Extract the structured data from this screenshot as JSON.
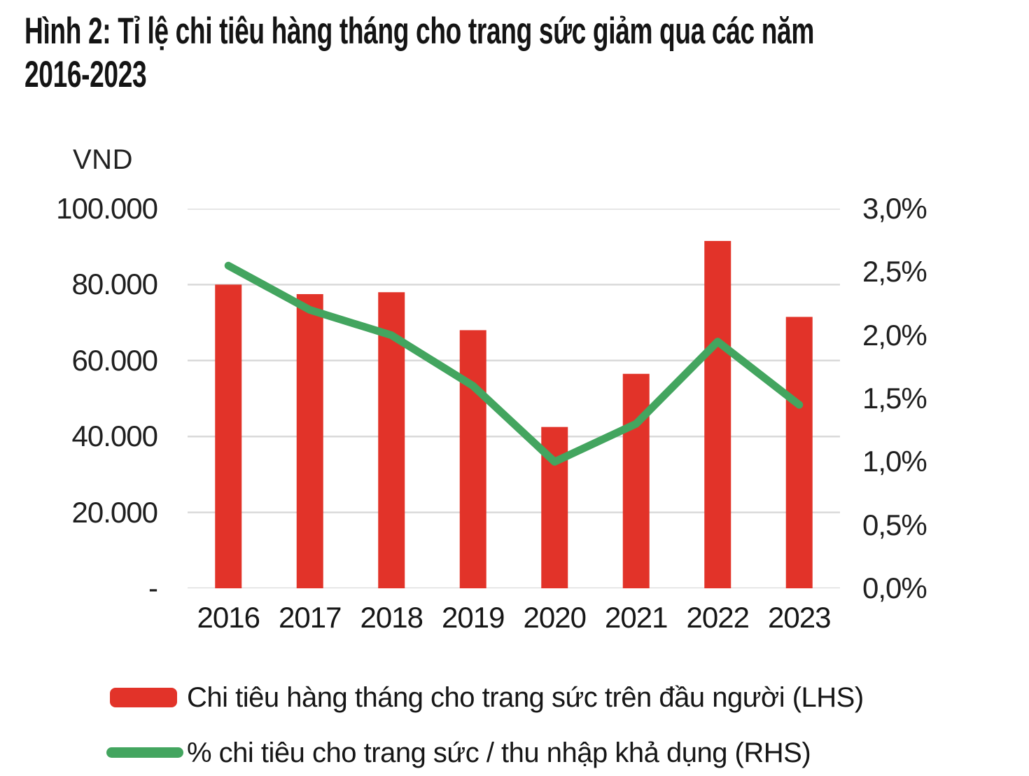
{
  "title": {
    "line1": "Hình 2: Tỉ lệ chi tiêu hàng tháng cho trang sức giảm qua các năm",
    "line2": "2016-2023",
    "full": "Hình 2: Tỉ lệ chi tiêu hàng tháng cho trang sức giảm qua các năm 2016-2023"
  },
  "left_axis": {
    "unit": "VND",
    "tick_labels": [
      "100.000",
      "80.000",
      "60.000",
      "40.000",
      "20.000",
      "-"
    ],
    "tick_values": [
      100000,
      80000,
      60000,
      40000,
      20000,
      0
    ]
  },
  "right_axis": {
    "tick_labels": [
      "3,0%",
      "2,5%",
      "2,0%",
      "1,5%",
      "1,0%",
      "0,5%",
      "0,0%"
    ],
    "tick_values": [
      3.0,
      2.5,
      2.0,
      1.5,
      1.0,
      0.5,
      0.0
    ]
  },
  "chart_data": {
    "type": "bar+line",
    "categories": [
      "2016",
      "2017",
      "2018",
      "2019",
      "2020",
      "2021",
      "2022",
      "2023"
    ],
    "series": [
      {
        "name": "Chi tiêu hàng tháng cho trang sức trên đầu người (LHS)",
        "type": "bar",
        "axis": "left",
        "unit": "VND",
        "color": "#e23329",
        "values": [
          80000,
          77500,
          78000,
          68000,
          42500,
          56500,
          91500,
          71500
        ]
      },
      {
        "name": "% chi tiêu cho trang sức / thu nhập khả dụng (RHS)",
        "type": "line",
        "axis": "right",
        "unit": "%",
        "color": "#43a55f",
        "values": [
          2.55,
          2.2,
          2.0,
          1.6,
          1.0,
          1.3,
          1.95,
          1.45
        ]
      }
    ],
    "left_ylim": [
      0,
      100000
    ],
    "right_ylim": [
      0,
      3.0
    ],
    "grid": true,
    "gridline_color": "#d9d9d9",
    "legend_position": "bottom"
  },
  "legend": {
    "items": [
      {
        "label": "Chi tiêu hàng tháng cho trang sức trên đầu người (LHS)",
        "swatch": "bar",
        "color": "#e23329"
      },
      {
        "label": "% chi tiêu cho trang sức / thu nhập khả dụng (RHS)",
        "swatch": "line",
        "color": "#43a55f"
      }
    ]
  }
}
